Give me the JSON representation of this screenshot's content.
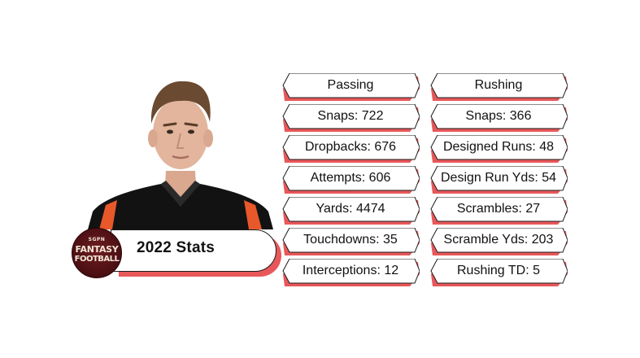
{
  "player": {
    "photo_icon": "player-headshot-icon",
    "jersey_colors": [
      "#111111",
      "#e8582a"
    ]
  },
  "banner": {
    "label": "2022 Stats",
    "logo": {
      "icon": "sgpn-fantasy-football-logo",
      "small_text": "SGPN",
      "line1": "FANTASY",
      "line2": "FOOTBALL"
    }
  },
  "colors": {
    "accent": "#e8585a",
    "border": "#1a1a1a",
    "logo_bg": "#4a0f12"
  },
  "passing": {
    "header": "Passing",
    "items": [
      "Snaps: 722",
      "Dropbacks: 676",
      "Attempts: 606",
      "Yards: 4474",
      "Touchdowns: 35",
      "Interceptions: 12"
    ]
  },
  "rushing": {
    "header": "Rushing",
    "items": [
      "Snaps: 366",
      "Designed Runs: 48",
      "Design Run Yds: 54",
      "Scrambles: 27",
      "Scramble Yds: 203",
      "Rushing TD: 5"
    ]
  }
}
